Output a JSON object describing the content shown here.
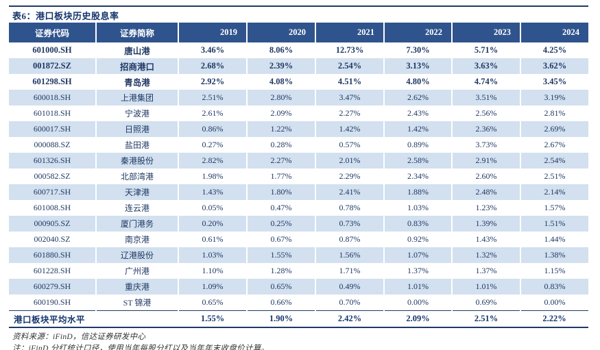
{
  "title": "表6：港口板块历史股息率",
  "table": {
    "headers": [
      "证券代码",
      "证券简称",
      "2019",
      "2020",
      "2021",
      "2022",
      "2023",
      "2024"
    ],
    "rows": [
      {
        "code": "601000.SH",
        "name": "唐山港",
        "bold": true,
        "values": [
          "3.46%",
          "8.06%",
          "12.73%",
          "7.30%",
          "5.71%",
          "4.25%"
        ]
      },
      {
        "code": "001872.SZ",
        "name": "招商港口",
        "bold": true,
        "values": [
          "2.68%",
          "2.39%",
          "2.54%",
          "3.13%",
          "3.63%",
          "3.62%"
        ]
      },
      {
        "code": "601298.SH",
        "name": "青岛港",
        "bold": true,
        "values": [
          "2.92%",
          "4.08%",
          "4.51%",
          "4.80%",
          "4.74%",
          "3.45%"
        ]
      },
      {
        "code": "600018.SH",
        "name": "上港集团",
        "bold": false,
        "values": [
          "2.51%",
          "2.80%",
          "3.47%",
          "2.62%",
          "3.51%",
          "3.19%"
        ]
      },
      {
        "code": "601018.SH",
        "name": "宁波港",
        "bold": false,
        "values": [
          "2.61%",
          "2.09%",
          "2.27%",
          "2.43%",
          "2.56%",
          "2.81%"
        ]
      },
      {
        "code": "600017.SH",
        "name": "日照港",
        "bold": false,
        "values": [
          "0.86%",
          "1.22%",
          "1.42%",
          "1.42%",
          "2.36%",
          "2.69%"
        ]
      },
      {
        "code": "000088.SZ",
        "name": "盐田港",
        "bold": false,
        "values": [
          "0.27%",
          "0.28%",
          "0.57%",
          "0.89%",
          "3.73%",
          "2.67%"
        ]
      },
      {
        "code": "601326.SH",
        "name": "秦港股份",
        "bold": false,
        "values": [
          "2.82%",
          "2.27%",
          "2.01%",
          "2.58%",
          "2.91%",
          "2.54%"
        ]
      },
      {
        "code": "000582.SZ",
        "name": "北部湾港",
        "bold": false,
        "values": [
          "1.98%",
          "1.77%",
          "2.29%",
          "2.34%",
          "2.60%",
          "2.51%"
        ]
      },
      {
        "code": "600717.SH",
        "name": "天津港",
        "bold": false,
        "values": [
          "1.43%",
          "1.80%",
          "2.41%",
          "1.88%",
          "2.48%",
          "2.14%"
        ]
      },
      {
        "code": "601008.SH",
        "name": "连云港",
        "bold": false,
        "values": [
          "0.05%",
          "0.47%",
          "0.78%",
          "1.03%",
          "1.23%",
          "1.57%"
        ]
      },
      {
        "code": "000905.SZ",
        "name": "厦门港务",
        "bold": false,
        "values": [
          "0.20%",
          "0.25%",
          "0.73%",
          "0.83%",
          "1.39%",
          "1.51%"
        ]
      },
      {
        "code": "002040.SZ",
        "name": "南京港",
        "bold": false,
        "values": [
          "0.61%",
          "0.67%",
          "0.87%",
          "0.92%",
          "1.43%",
          "1.44%"
        ]
      },
      {
        "code": "601880.SH",
        "name": "辽港股份",
        "bold": false,
        "values": [
          "1.03%",
          "1.55%",
          "1.56%",
          "1.07%",
          "1.32%",
          "1.38%"
        ]
      },
      {
        "code": "601228.SH",
        "name": "广州港",
        "bold": false,
        "values": [
          "1.10%",
          "1.28%",
          "1.71%",
          "1.37%",
          "1.37%",
          "1.15%"
        ]
      },
      {
        "code": "600279.SH",
        "name": "重庆港",
        "bold": false,
        "values": [
          "1.09%",
          "0.65%",
          "0.49%",
          "1.01%",
          "1.01%",
          "0.83%"
        ]
      },
      {
        "code": "600190.SH",
        "name": "ST 锦港",
        "bold": false,
        "values": [
          "0.65%",
          "0.66%",
          "0.70%",
          "0.00%",
          "0.69%",
          "0.00%"
        ]
      }
    ],
    "summary": {
      "label": "港口板块平均水平",
      "values": [
        "1.55%",
        "1.90%",
        "2.42%",
        "2.09%",
        "2.51%",
        "2.22%"
      ]
    }
  },
  "footer": {
    "source": "资料来源：iFinD，信达证券研发中心",
    "note": "注：iFinD 分红统计口径，使用当年每股分红以及当年年末收盘价计算。"
  },
  "colors": {
    "header_bg": "#2F538C",
    "row_alt_bg": "#D2E0EF",
    "text_navy": "#1F3864",
    "rule_navy": "#1F3864"
  }
}
